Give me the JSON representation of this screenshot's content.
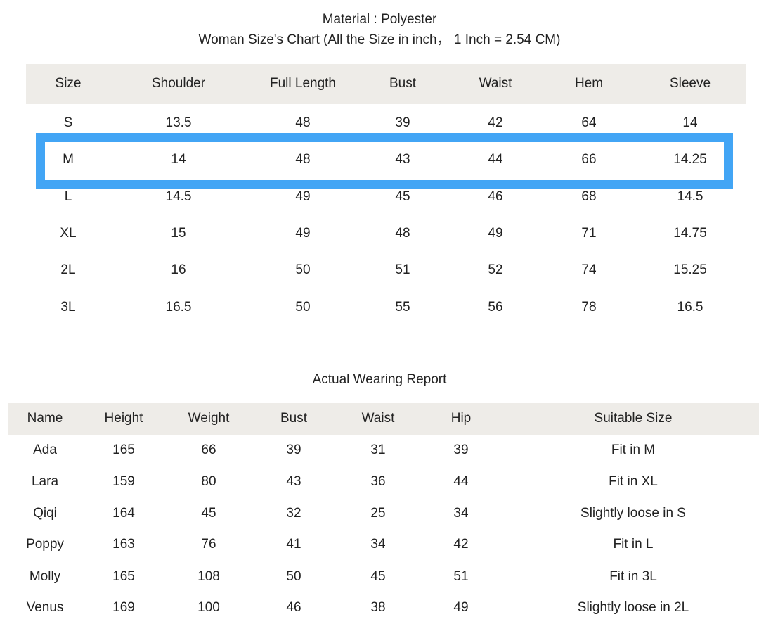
{
  "material": "Material :  Polyester",
  "size_chart_title": "Woman Size's Chart (All the Size in inch，  1 Inch = 2.54 CM)",
  "highlight_color": "#42a5f5",
  "highlighted_size": "M",
  "size_table": {
    "headers": [
      "Size",
      "Shoulder",
      "Full Length",
      "Bust",
      "Waist",
      "Hem",
      "Sleeve"
    ],
    "rows": [
      [
        "S",
        "13.5",
        "48",
        "39",
        "42",
        "64",
        "14"
      ],
      [
        "M",
        "14",
        "48",
        "43",
        "44",
        "66",
        "14.25"
      ],
      [
        "L",
        "14.5",
        "49",
        "45",
        "46",
        "68",
        "14.5"
      ],
      [
        "XL",
        "15",
        "49",
        "48",
        "49",
        "71",
        "14.75"
      ],
      [
        "2L",
        "16",
        "50",
        "51",
        "52",
        "74",
        "15.25"
      ],
      [
        "3L",
        "16.5",
        "50",
        "55",
        "56",
        "78",
        "16.5"
      ]
    ]
  },
  "report_title": "Actual Wearing Report",
  "report_table": {
    "headers": [
      "Name",
      "Height",
      "Weight",
      "Bust",
      "Waist",
      "Hip",
      "Suitable Size"
    ],
    "rows": [
      [
        "Ada",
        "165",
        "66",
        "39",
        "31",
        "39",
        "Fit in M"
      ],
      [
        "Lara",
        "159",
        "80",
        "43",
        "36",
        "44",
        "Fit in XL"
      ],
      [
        "Qiqi",
        "164",
        "45",
        "32",
        "25",
        "34",
        "Slightly loose in S"
      ],
      [
        "Poppy",
        "163",
        "76",
        "41",
        "34",
        "42",
        "Fit in L"
      ],
      [
        "Molly",
        "165",
        "108",
        "50",
        "45",
        "51",
        "Fit in 3L"
      ],
      [
        "Venus",
        "169",
        "100",
        "46",
        "38",
        "49",
        "Slightly loose in 2L"
      ]
    ]
  }
}
